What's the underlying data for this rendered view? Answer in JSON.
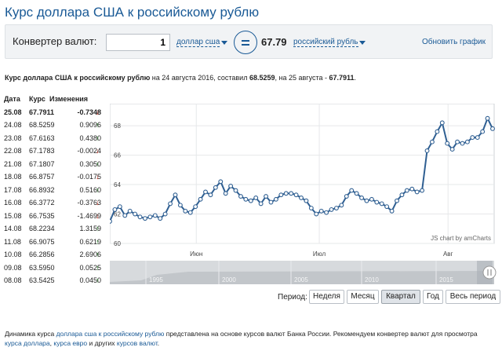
{
  "title": "Курс доллара США к российскому рублю",
  "converter": {
    "label": "Конвертер валют:",
    "amount": "1",
    "from_currency": "доллар сша",
    "result": "67.79",
    "to_currency": "российский рубль",
    "update_link": "Обновить график"
  },
  "summary": {
    "p1": "Курс доллара США к российскому рублю",
    "p2": " на 24 августа 2016, составил ",
    "v1": "68.5259",
    "p3": ", на 25 августа - ",
    "v2": "67.7911",
    "p4": "."
  },
  "table": {
    "headers": [
      "Дата",
      "Курс",
      "Изменения"
    ],
    "rows": [
      {
        "date": "25.08",
        "rate": "67.7911",
        "change": "-0.7348",
        "dir": "down"
      },
      {
        "date": "24.08",
        "rate": "68.5259",
        "change": "0.9096",
        "dir": "up"
      },
      {
        "date": "23.08",
        "rate": "67.6163",
        "change": "0.4380",
        "dir": "up"
      },
      {
        "date": "22.08",
        "rate": "67.1783",
        "change": "-0.0024",
        "dir": "down"
      },
      {
        "date": "21.08",
        "rate": "67.1807",
        "change": "0.3050",
        "dir": "up"
      },
      {
        "date": "18.08",
        "rate": "66.8757",
        "change": "-0.0175",
        "dir": "down"
      },
      {
        "date": "17.08",
        "rate": "66.8932",
        "change": "0.5160",
        "dir": "up"
      },
      {
        "date": "16.08",
        "rate": "66.3772",
        "change": "-0.3763",
        "dir": "down"
      },
      {
        "date": "15.08",
        "rate": "66.7535",
        "change": "-1.4699",
        "dir": "down"
      },
      {
        "date": "14.08",
        "rate": "68.2234",
        "change": "1.3159",
        "dir": "up"
      },
      {
        "date": "11.08",
        "rate": "66.9075",
        "change": "0.6219",
        "dir": "up"
      },
      {
        "date": "10.08",
        "rate": "66.2856",
        "change": "2.6906",
        "dir": "up"
      },
      {
        "date": "09.08",
        "rate": "63.5950",
        "change": "0.0525",
        "dir": "up"
      },
      {
        "date": "08.08",
        "rate": "63.5425",
        "change": "0.0450",
        "dir": "up"
      }
    ]
  },
  "chart_data": {
    "type": "line",
    "y_ticks": [
      "60",
      "62",
      "64",
      "66",
      "68"
    ],
    "ylim": [
      60,
      69.5
    ],
    "x_labels": [
      "Июн",
      "Июл",
      "Авг"
    ],
    "credit": "JS chart by amCharts",
    "color": "#2f5f92",
    "navigator_years": [
      "1995",
      "2000",
      "2005",
      "2010",
      "2015"
    ],
    "values": [
      61.5,
      62.3,
      62.5,
      61.9,
      62.2,
      62.0,
      61.8,
      61.7,
      61.8,
      61.9,
      61.7,
      62.0,
      62.7,
      63.3,
      62.6,
      62.2,
      62.1,
      62.5,
      63.0,
      63.5,
      63.3,
      63.8,
      64.2,
      63.4,
      63.9,
      63.6,
      63.2,
      63.0,
      62.9,
      63.1,
      62.7,
      63.2,
      62.8,
      63.0,
      63.3,
      63.4,
      63.4,
      63.3,
      63.1,
      62.9,
      62.4,
      62.0,
      62.2,
      62.1,
      62.3,
      62.4,
      62.6,
      63.2,
      63.6,
      63.4,
      63.1,
      62.9,
      63.0,
      62.8,
      62.7,
      62.5,
      62.2,
      62.9,
      63.3,
      63.6,
      63.7,
      63.5,
      63.6,
      66.3,
      66.9,
      67.6,
      68.2,
      66.8,
      66.4,
      66.9,
      66.8,
      66.9,
      67.2,
      67.2,
      67.6,
      68.5,
      67.8
    ]
  },
  "period": {
    "label": "Период:",
    "buttons": [
      "Неделя",
      "Месяц",
      "Квартал",
      "Год",
      "Весь период"
    ],
    "active": "Квартал"
  },
  "footer": {
    "t1": "Динамика курса ",
    "l1": "доллара сша к российскому рублю",
    "t2": " представлена на основе курсов валют Банка России. Рекомендуем конвертер валют для просмотра ",
    "l2": "курса доллара",
    "t3": ", ",
    "l3": "курса евро",
    "t4": " и других ",
    "l4": "курсов валют",
    "t5": "."
  }
}
